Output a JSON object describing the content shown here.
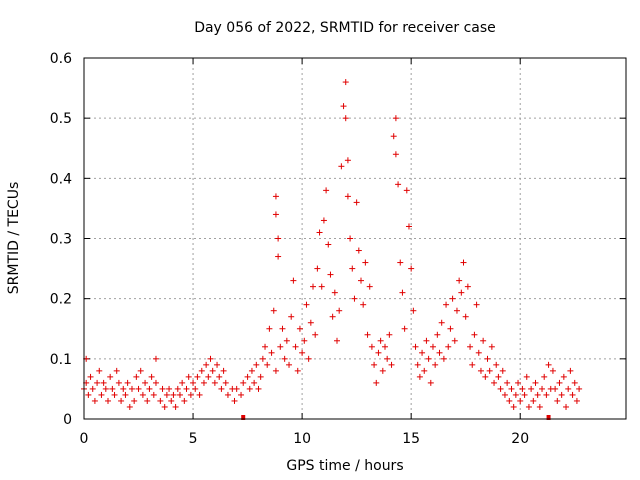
{
  "chart_data": {
    "type": "scatter",
    "title": "Day 056 of 2022, SRMTID for receiver case",
    "xlabel": "GPS time / hours",
    "ylabel": "SRMTID / TECUs",
    "xlim": [
      0,
      24.85
    ],
    "ylim": [
      0,
      0.6
    ],
    "xticks": [
      0,
      5,
      10,
      15,
      20
    ],
    "yticks": [
      0,
      0.1,
      0.2,
      0.3,
      0.4,
      0.5,
      0.6
    ],
    "xtick_labels": [
      "0",
      "5",
      "10",
      "15",
      "20"
    ],
    "ytick_labels": [
      "0",
      "0.1",
      "0.2",
      "0.3",
      "0.4",
      "0.5",
      "0.6"
    ],
    "grid": true,
    "marker": "+",
    "color": "#e00000",
    "series": [
      {
        "name": "SRMTID",
        "points": [
          [
            0.0,
            0.05
          ],
          [
            0.1,
            0.06
          ],
          [
            0.1,
            0.1
          ],
          [
            0.2,
            0.04
          ],
          [
            0.3,
            0.07
          ],
          [
            0.4,
            0.05
          ],
          [
            0.5,
            0.03
          ],
          [
            0.6,
            0.06
          ],
          [
            0.7,
            0.08
          ],
          [
            0.8,
            0.04
          ],
          [
            0.9,
            0.06
          ],
          [
            1.0,
            0.05
          ],
          [
            1.1,
            0.03
          ],
          [
            1.2,
            0.07
          ],
          [
            1.3,
            0.05
          ],
          [
            1.4,
            0.04
          ],
          [
            1.5,
            0.08
          ],
          [
            1.6,
            0.06
          ],
          [
            1.7,
            0.03
          ],
          [
            1.8,
            0.05
          ],
          [
            1.9,
            0.04
          ],
          [
            2.0,
            0.06
          ],
          [
            2.1,
            0.02
          ],
          [
            2.2,
            0.05
          ],
          [
            2.3,
            0.03
          ],
          [
            2.4,
            0.07
          ],
          [
            2.5,
            0.05
          ],
          [
            2.6,
            0.08
          ],
          [
            2.7,
            0.04
          ],
          [
            2.8,
            0.06
          ],
          [
            2.9,
            0.03
          ],
          [
            3.0,
            0.05
          ],
          [
            3.1,
            0.07
          ],
          [
            3.2,
            0.04
          ],
          [
            3.3,
            0.06
          ],
          [
            3.3,
            0.1
          ],
          [
            3.5,
            0.03
          ],
          [
            3.6,
            0.05
          ],
          [
            3.7,
            0.02
          ],
          [
            3.8,
            0.04
          ],
          [
            3.9,
            0.05
          ],
          [
            4.0,
            0.03
          ],
          [
            4.1,
            0.04
          ],
          [
            4.2,
            0.02
          ],
          [
            4.3,
            0.05
          ],
          [
            4.4,
            0.04
          ],
          [
            4.5,
            0.06
          ],
          [
            4.6,
            0.03
          ],
          [
            4.7,
            0.05
          ],
          [
            4.8,
            0.07
          ],
          [
            4.9,
            0.04
          ],
          [
            5.0,
            0.06
          ],
          [
            5.1,
            0.05
          ],
          [
            5.2,
            0.07
          ],
          [
            5.3,
            0.04
          ],
          [
            5.4,
            0.08
          ],
          [
            5.5,
            0.06
          ],
          [
            5.6,
            0.09
          ],
          [
            5.7,
            0.07
          ],
          [
            5.8,
            0.1
          ],
          [
            5.9,
            0.08
          ],
          [
            6.0,
            0.06
          ],
          [
            6.1,
            0.09
          ],
          [
            6.2,
            0.07
          ],
          [
            6.3,
            0.05
          ],
          [
            6.4,
            0.08
          ],
          [
            6.5,
            0.06
          ],
          [
            6.6,
            0.04
          ],
          [
            6.8,
            0.05
          ],
          [
            6.9,
            0.03
          ],
          [
            7.0,
            0.05
          ],
          [
            7.2,
            0.04
          ],
          [
            7.3,
            0.06
          ],
          [
            7.5,
            0.07
          ],
          [
            7.6,
            0.05
          ],
          [
            7.7,
            0.08
          ],
          [
            7.8,
            0.06
          ],
          [
            7.9,
            0.09
          ],
          [
            8.0,
            0.05
          ],
          [
            8.1,
            0.07
          ],
          [
            8.2,
            0.1
          ],
          [
            8.3,
            0.12
          ],
          [
            8.4,
            0.09
          ],
          [
            8.5,
            0.15
          ],
          [
            8.6,
            0.11
          ],
          [
            8.7,
            0.18
          ],
          [
            8.8,
            0.08
          ],
          [
            8.8,
            0.37
          ],
          [
            8.8,
            0.34
          ],
          [
            8.9,
            0.3
          ],
          [
            8.9,
            0.27
          ],
          [
            9.0,
            0.12
          ],
          [
            9.1,
            0.15
          ],
          [
            9.2,
            0.1
          ],
          [
            9.3,
            0.13
          ],
          [
            9.4,
            0.09
          ],
          [
            9.5,
            0.17
          ],
          [
            9.6,
            0.23
          ],
          [
            9.7,
            0.12
          ],
          [
            9.8,
            0.08
          ],
          [
            9.9,
            0.15
          ],
          [
            10.0,
            0.11
          ],
          [
            10.1,
            0.13
          ],
          [
            10.2,
            0.19
          ],
          [
            10.3,
            0.1
          ],
          [
            10.4,
            0.16
          ],
          [
            10.5,
            0.22
          ],
          [
            10.6,
            0.14
          ],
          [
            10.7,
            0.25
          ],
          [
            10.8,
            0.31
          ],
          [
            10.9,
            0.22
          ],
          [
            11.0,
            0.33
          ],
          [
            11.1,
            0.38
          ],
          [
            11.2,
            0.29
          ],
          [
            11.3,
            0.24
          ],
          [
            11.4,
            0.17
          ],
          [
            11.5,
            0.21
          ],
          [
            11.6,
            0.13
          ],
          [
            11.7,
            0.18
          ],
          [
            11.8,
            0.42
          ],
          [
            11.9,
            0.52
          ],
          [
            12.0,
            0.56
          ],
          [
            12.0,
            0.5
          ],
          [
            12.1,
            0.43
          ],
          [
            12.1,
            0.37
          ],
          [
            12.2,
            0.3
          ],
          [
            12.3,
            0.25
          ],
          [
            12.4,
            0.2
          ],
          [
            12.5,
            0.36
          ],
          [
            12.6,
            0.28
          ],
          [
            12.7,
            0.23
          ],
          [
            12.8,
            0.19
          ],
          [
            12.9,
            0.26
          ],
          [
            13.0,
            0.14
          ],
          [
            13.1,
            0.22
          ],
          [
            13.2,
            0.12
          ],
          [
            13.3,
            0.09
          ],
          [
            13.4,
            0.06
          ],
          [
            13.5,
            0.11
          ],
          [
            13.6,
            0.13
          ],
          [
            13.7,
            0.08
          ],
          [
            13.8,
            0.12
          ],
          [
            13.9,
            0.1
          ],
          [
            14.0,
            0.14
          ],
          [
            14.1,
            0.09
          ],
          [
            14.2,
            0.47
          ],
          [
            14.3,
            0.5
          ],
          [
            14.3,
            0.44
          ],
          [
            14.4,
            0.39
          ],
          [
            14.5,
            0.26
          ],
          [
            14.6,
            0.21
          ],
          [
            14.7,
            0.15
          ],
          [
            14.8,
            0.38
          ],
          [
            14.9,
            0.32
          ],
          [
            15.0,
            0.25
          ],
          [
            15.1,
            0.18
          ],
          [
            15.2,
            0.12
          ],
          [
            15.3,
            0.09
          ],
          [
            15.4,
            0.07
          ],
          [
            15.5,
            0.11
          ],
          [
            15.6,
            0.08
          ],
          [
            15.7,
            0.13
          ],
          [
            15.8,
            0.1
          ],
          [
            15.9,
            0.06
          ],
          [
            16.0,
            0.12
          ],
          [
            16.1,
            0.09
          ],
          [
            16.2,
            0.14
          ],
          [
            16.3,
            0.11
          ],
          [
            16.4,
            0.16
          ],
          [
            16.5,
            0.1
          ],
          [
            16.6,
            0.19
          ],
          [
            16.7,
            0.12
          ],
          [
            16.8,
            0.15
          ],
          [
            16.9,
            0.2
          ],
          [
            17.0,
            0.13
          ],
          [
            17.1,
            0.18
          ],
          [
            17.2,
            0.23
          ],
          [
            17.3,
            0.21
          ],
          [
            17.4,
            0.26
          ],
          [
            17.5,
            0.17
          ],
          [
            17.6,
            0.22
          ],
          [
            17.7,
            0.12
          ],
          [
            17.8,
            0.09
          ],
          [
            17.9,
            0.14
          ],
          [
            18.0,
            0.19
          ],
          [
            18.1,
            0.11
          ],
          [
            18.2,
            0.08
          ],
          [
            18.3,
            0.13
          ],
          [
            18.4,
            0.07
          ],
          [
            18.5,
            0.1
          ],
          [
            18.6,
            0.08
          ],
          [
            18.7,
            0.12
          ],
          [
            18.8,
            0.06
          ],
          [
            18.9,
            0.09
          ],
          [
            19.0,
            0.07
          ],
          [
            19.1,
            0.05
          ],
          [
            19.2,
            0.08
          ],
          [
            19.3,
            0.04
          ],
          [
            19.4,
            0.06
          ],
          [
            19.5,
            0.03
          ],
          [
            19.6,
            0.05
          ],
          [
            19.7,
            0.02
          ],
          [
            19.8,
            0.04
          ],
          [
            19.9,
            0.06
          ],
          [
            20.0,
            0.03
          ],
          [
            20.1,
            0.05
          ],
          [
            20.2,
            0.04
          ],
          [
            20.3,
            0.07
          ],
          [
            20.4,
            0.02
          ],
          [
            20.5,
            0.05
          ],
          [
            20.6,
            0.03
          ],
          [
            20.7,
            0.06
          ],
          [
            20.8,
            0.04
          ],
          [
            20.9,
            0.02
          ],
          [
            21.0,
            0.05
          ],
          [
            21.1,
            0.07
          ],
          [
            21.2,
            0.04
          ],
          [
            21.3,
            0.09
          ],
          [
            21.4,
            0.05
          ],
          [
            21.5,
            0.08
          ],
          [
            21.6,
            0.05
          ],
          [
            21.7,
            0.03
          ],
          [
            21.8,
            0.06
          ],
          [
            21.9,
            0.04
          ],
          [
            22.0,
            0.07
          ],
          [
            22.1,
            0.02
          ],
          [
            22.2,
            0.05
          ],
          [
            22.3,
            0.08
          ],
          [
            22.4,
            0.04
          ],
          [
            22.5,
            0.06
          ],
          [
            22.6,
            0.03
          ],
          [
            22.7,
            0.05
          ]
        ]
      }
    ],
    "axis_markers": [
      7.3,
      21.3
    ]
  }
}
